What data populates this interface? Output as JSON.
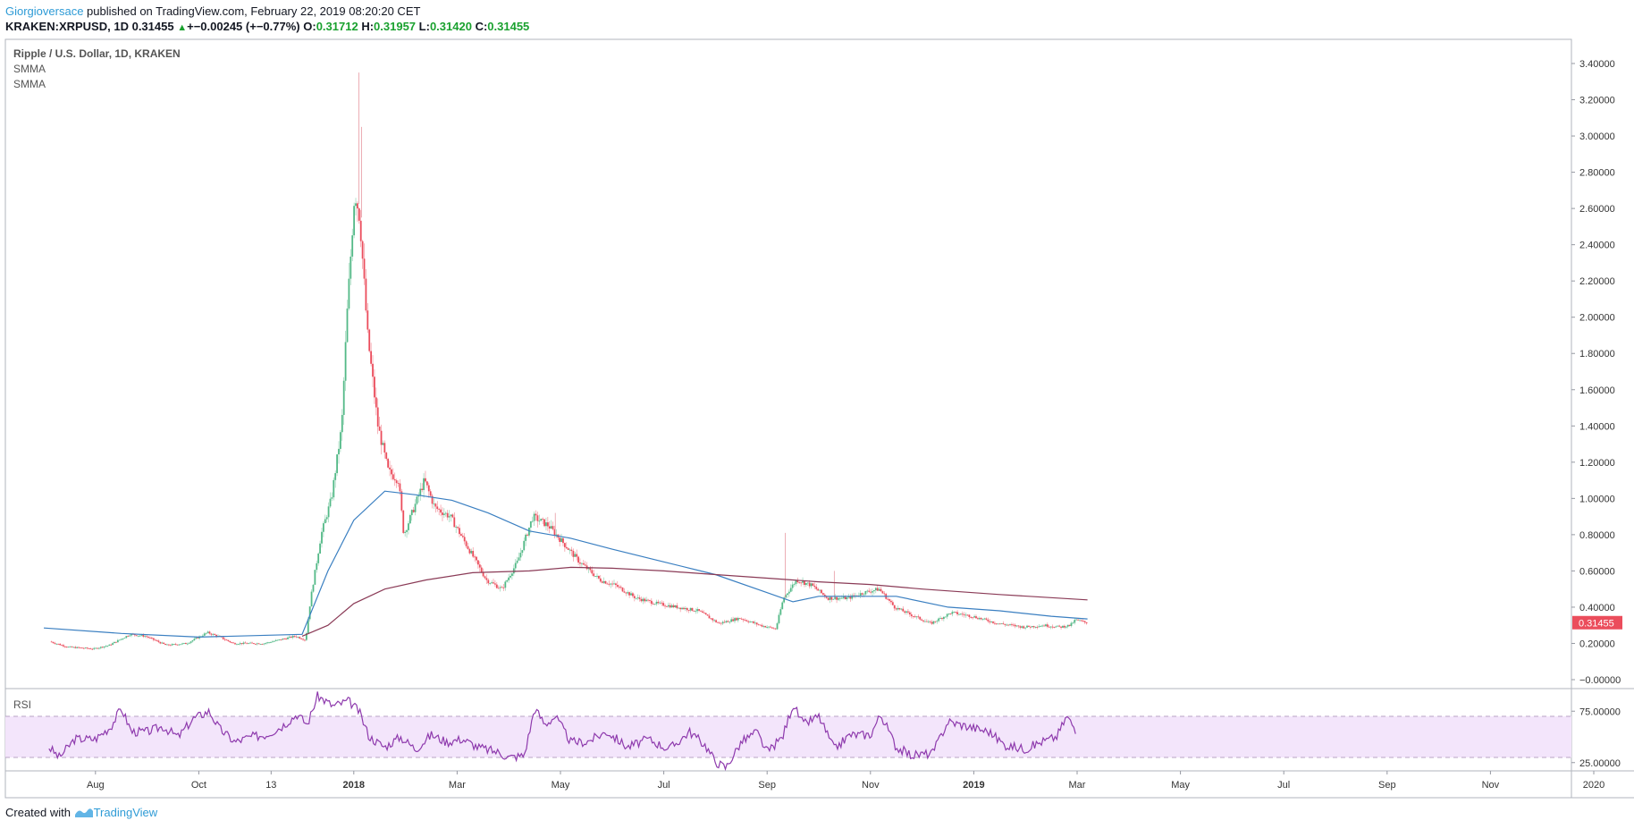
{
  "header": {
    "author": "Giorgioversace",
    "published": " published on TradingView.com, February 22, 2019 08:20:20 CET"
  },
  "ticker": {
    "symbol": "KRAKEN:XRPUSD, 1D",
    "last": "0.31455",
    "change": "+−0.00245 (+−0.77%)",
    "o_label": "O:",
    "o": "0.31712",
    "h_label": "H:",
    "h": "0.31957",
    "l_label": "L:",
    "l": "0.31420",
    "c_label": "C:",
    "c": "0.31455"
  },
  "legend": {
    "title": "Ripple / U.S. Dollar, 1D, KRAKEN",
    "ind1": "SMMA",
    "ind2": "SMMA",
    "rsi": "RSI"
  },
  "footer": {
    "created": "Created with ",
    "brand": "TradingView"
  },
  "colors": {
    "up": "#53b987",
    "down": "#eb4d5c",
    "smma_fast": "#3a7fc1",
    "smma_slow": "#8a3a56",
    "rsi_line": "#8e3aad",
    "rsi_band": "#f3e5fb",
    "price_tag": "#eb4d5c"
  },
  "chart_data": [
    {
      "type": "candlestick",
      "title": "Ripple / U.S. Dollar, 1D, KRAKEN",
      "ylim": [
        -0.05,
        3.45
      ],
      "y_ticks": [
        "3.40000",
        "3.20000",
        "3.00000",
        "2.80000",
        "2.60000",
        "2.40000",
        "2.20000",
        "2.00000",
        "1.80000",
        "1.60000",
        "1.40000",
        "1.20000",
        "1.00000",
        "0.80000",
        "0.60000",
        "0.40000",
        "0.20000",
        "−0.00000"
      ],
      "y_tick_values": [
        3.4,
        3.2,
        3.0,
        2.8,
        2.6,
        2.4,
        2.2,
        2.0,
        1.8,
        1.6,
        1.4,
        1.2,
        1.0,
        0.8,
        0.6,
        0.4,
        0.2,
        0.0
      ],
      "x_ticks": [
        "Aug",
        "Oct",
        "13",
        "2018",
        "Mar",
        "May",
        "Jul",
        "Sep",
        "Nov",
        "2019",
        "Mar",
        "May",
        "Jul",
        "Sep",
        "Nov",
        "2020"
      ],
      "x_tick_months": [
        1,
        3,
        4.4,
        6,
        8,
        10,
        12,
        14,
        16,
        18,
        20,
        22,
        24,
        26,
        28,
        30
      ],
      "last_price": "0.31455",
      "last_value": 0.31455,
      "months_span": [
        0.15,
        20.2
      ],
      "price_path": [
        [
          0.15,
          0.21
        ],
        [
          0.5,
          0.18
        ],
        [
          1.0,
          0.17
        ],
        [
          1.3,
          0.19
        ],
        [
          1.7,
          0.25
        ],
        [
          2.0,
          0.24
        ],
        [
          2.4,
          0.19
        ],
        [
          2.8,
          0.2
        ],
        [
          3.2,
          0.26
        ],
        [
          3.4,
          0.24
        ],
        [
          3.7,
          0.2
        ],
        [
          4.3,
          0.2
        ],
        [
          4.9,
          0.24
        ],
        [
          5.1,
          0.22
        ],
        [
          5.2,
          0.45
        ],
        [
          5.4,
          0.8
        ],
        [
          5.6,
          1.0
        ],
        [
          5.8,
          1.4
        ],
        [
          5.9,
          2.0
        ],
        [
          6.05,
          2.7
        ],
        [
          6.15,
          2.55
        ],
        [
          6.3,
          1.9
        ],
        [
          6.5,
          1.4
        ],
        [
          6.7,
          1.15
        ],
        [
          6.9,
          1.1
        ],
        [
          7.0,
          0.8
        ],
        [
          7.2,
          0.95
        ],
        [
          7.4,
          1.1
        ],
        [
          7.6,
          0.95
        ],
        [
          7.9,
          0.9
        ],
        [
          8.3,
          0.7
        ],
        [
          8.6,
          0.55
        ],
        [
          8.9,
          0.5
        ],
        [
          9.2,
          0.65
        ],
        [
          9.5,
          0.9
        ],
        [
          9.8,
          0.85
        ],
        [
          10.1,
          0.75
        ],
        [
          10.4,
          0.65
        ],
        [
          10.8,
          0.55
        ],
        [
          11.1,
          0.52
        ],
        [
          11.5,
          0.45
        ],
        [
          11.9,
          0.42
        ],
        [
          12.3,
          0.4
        ],
        [
          12.7,
          0.38
        ],
        [
          13.1,
          0.31
        ],
        [
          13.5,
          0.34
        ],
        [
          13.9,
          0.3
        ],
        [
          14.2,
          0.28
        ],
        [
          14.35,
          0.45
        ],
        [
          14.6,
          0.55
        ],
        [
          14.9,
          0.52
        ],
        [
          15.2,
          0.45
        ],
        [
          15.6,
          0.45
        ],
        [
          15.9,
          0.48
        ],
        [
          16.2,
          0.5
        ],
        [
          16.5,
          0.4
        ],
        [
          16.8,
          0.36
        ],
        [
          17.2,
          0.31
        ],
        [
          17.6,
          0.37
        ],
        [
          18.0,
          0.35
        ],
        [
          18.5,
          0.31
        ],
        [
          19.0,
          0.29
        ],
        [
          19.4,
          0.3
        ],
        [
          19.7,
          0.29
        ],
        [
          19.9,
          0.3
        ],
        [
          20.0,
          0.33
        ],
        [
          20.2,
          0.315
        ]
      ],
      "spikes": [
        [
          6.1,
          3.35
        ],
        [
          6.15,
          3.05
        ],
        [
          9.9,
          0.92
        ],
        [
          14.35,
          0.81
        ],
        [
          15.3,
          0.6
        ]
      ],
      "series": [
        {
          "name": "SMMA fast",
          "points": [
            [
              0,
              0.285
            ],
            [
              1.5,
              0.255
            ],
            [
              3,
              0.235
            ],
            [
              5,
              0.25
            ],
            [
              5.5,
              0.6
            ],
            [
              6,
              0.88
            ],
            [
              6.6,
              1.04
            ],
            [
              7.2,
              1.02
            ],
            [
              7.9,
              0.99
            ],
            [
              8.6,
              0.92
            ],
            [
              9.4,
              0.82
            ],
            [
              10.2,
              0.78
            ],
            [
              11,
              0.72
            ],
            [
              12,
              0.65
            ],
            [
              13,
              0.58
            ],
            [
              14,
              0.48
            ],
            [
              14.5,
              0.43
            ],
            [
              15,
              0.46
            ],
            [
              15.8,
              0.46
            ],
            [
              16.5,
              0.46
            ],
            [
              17.5,
              0.4
            ],
            [
              18.5,
              0.38
            ],
            [
              19.5,
              0.35
            ],
            [
              20.2,
              0.335
            ]
          ]
        },
        {
          "name": "SMMA slow",
          "points": [
            [
              5,
              0.24
            ],
            [
              5.5,
              0.3
            ],
            [
              6,
              0.42
            ],
            [
              6.6,
              0.5
            ],
            [
              7.4,
              0.55
            ],
            [
              8.3,
              0.59
            ],
            [
              9.4,
              0.6
            ],
            [
              10.2,
              0.62
            ],
            [
              11,
              0.615
            ],
            [
              12,
              0.6
            ],
            [
              13,
              0.58
            ],
            [
              14,
              0.56
            ],
            [
              15,
              0.54
            ],
            [
              16,
              0.525
            ],
            [
              17,
              0.5
            ],
            [
              18.5,
              0.47
            ],
            [
              20.2,
              0.44
            ]
          ]
        }
      ]
    },
    {
      "type": "line",
      "title": "RSI",
      "ylim": [
        10,
        92
      ],
      "y_ticks": [
        "75.00000",
        "25.00000"
      ],
      "y_tick_values": [
        75,
        25
      ],
      "band": [
        30,
        70
      ],
      "points": [
        [
          0.1,
          40
        ],
        [
          0.3,
          30
        ],
        [
          0.6,
          48
        ],
        [
          1.0,
          48
        ],
        [
          1.3,
          60
        ],
        [
          1.5,
          78
        ],
        [
          1.7,
          55
        ],
        [
          2.0,
          55
        ],
        [
          2.3,
          60
        ],
        [
          2.6,
          50
        ],
        [
          2.9,
          68
        ],
        [
          3.2,
          75
        ],
        [
          3.4,
          58
        ],
        [
          3.7,
          45
        ],
        [
          4.0,
          50
        ],
        [
          4.3,
          52
        ],
        [
          4.6,
          60
        ],
        [
          4.9,
          72
        ],
        [
          5.1,
          62
        ],
        [
          5.3,
          90
        ],
        [
          5.6,
          80
        ],
        [
          5.9,
          85
        ],
        [
          6.1,
          75
        ],
        [
          6.3,
          50
        ],
        [
          6.6,
          40
        ],
        [
          6.9,
          50
        ],
        [
          7.2,
          38
        ],
        [
          7.5,
          52
        ],
        [
          7.8,
          45
        ],
        [
          8.1,
          48
        ],
        [
          8.4,
          40
        ],
        [
          8.8,
          35
        ],
        [
          9.0,
          30
        ],
        [
          9.3,
          32
        ],
        [
          9.5,
          78
        ],
        [
          9.7,
          62
        ],
        [
          9.9,
          70
        ],
        [
          10.2,
          45
        ],
        [
          10.5,
          45
        ],
        [
          10.9,
          55
        ],
        [
          11.3,
          40
        ],
        [
          11.7,
          48
        ],
        [
          12.1,
          38
        ],
        [
          12.5,
          55
        ],
        [
          12.8,
          42
        ],
        [
          13.0,
          26
        ],
        [
          13.2,
          20
        ],
        [
          13.5,
          45
        ],
        [
          13.8,
          55
        ],
        [
          14.0,
          35
        ],
        [
          14.3,
          50
        ],
        [
          14.5,
          82
        ],
        [
          14.7,
          62
        ],
        [
          15.0,
          70
        ],
        [
          15.3,
          38
        ],
        [
          15.6,
          52
        ],
        [
          16.0,
          52
        ],
        [
          16.2,
          72
        ],
        [
          16.5,
          40
        ],
        [
          16.8,
          32
        ],
        [
          17.2,
          34
        ],
        [
          17.5,
          65
        ],
        [
          17.9,
          60
        ],
        [
          18.3,
          55
        ],
        [
          18.6,
          42
        ],
        [
          19.0,
          38
        ],
        [
          19.3,
          45
        ],
        [
          19.6,
          50
        ],
        [
          19.8,
          70
        ],
        [
          20.0,
          55
        ]
      ]
    }
  ]
}
